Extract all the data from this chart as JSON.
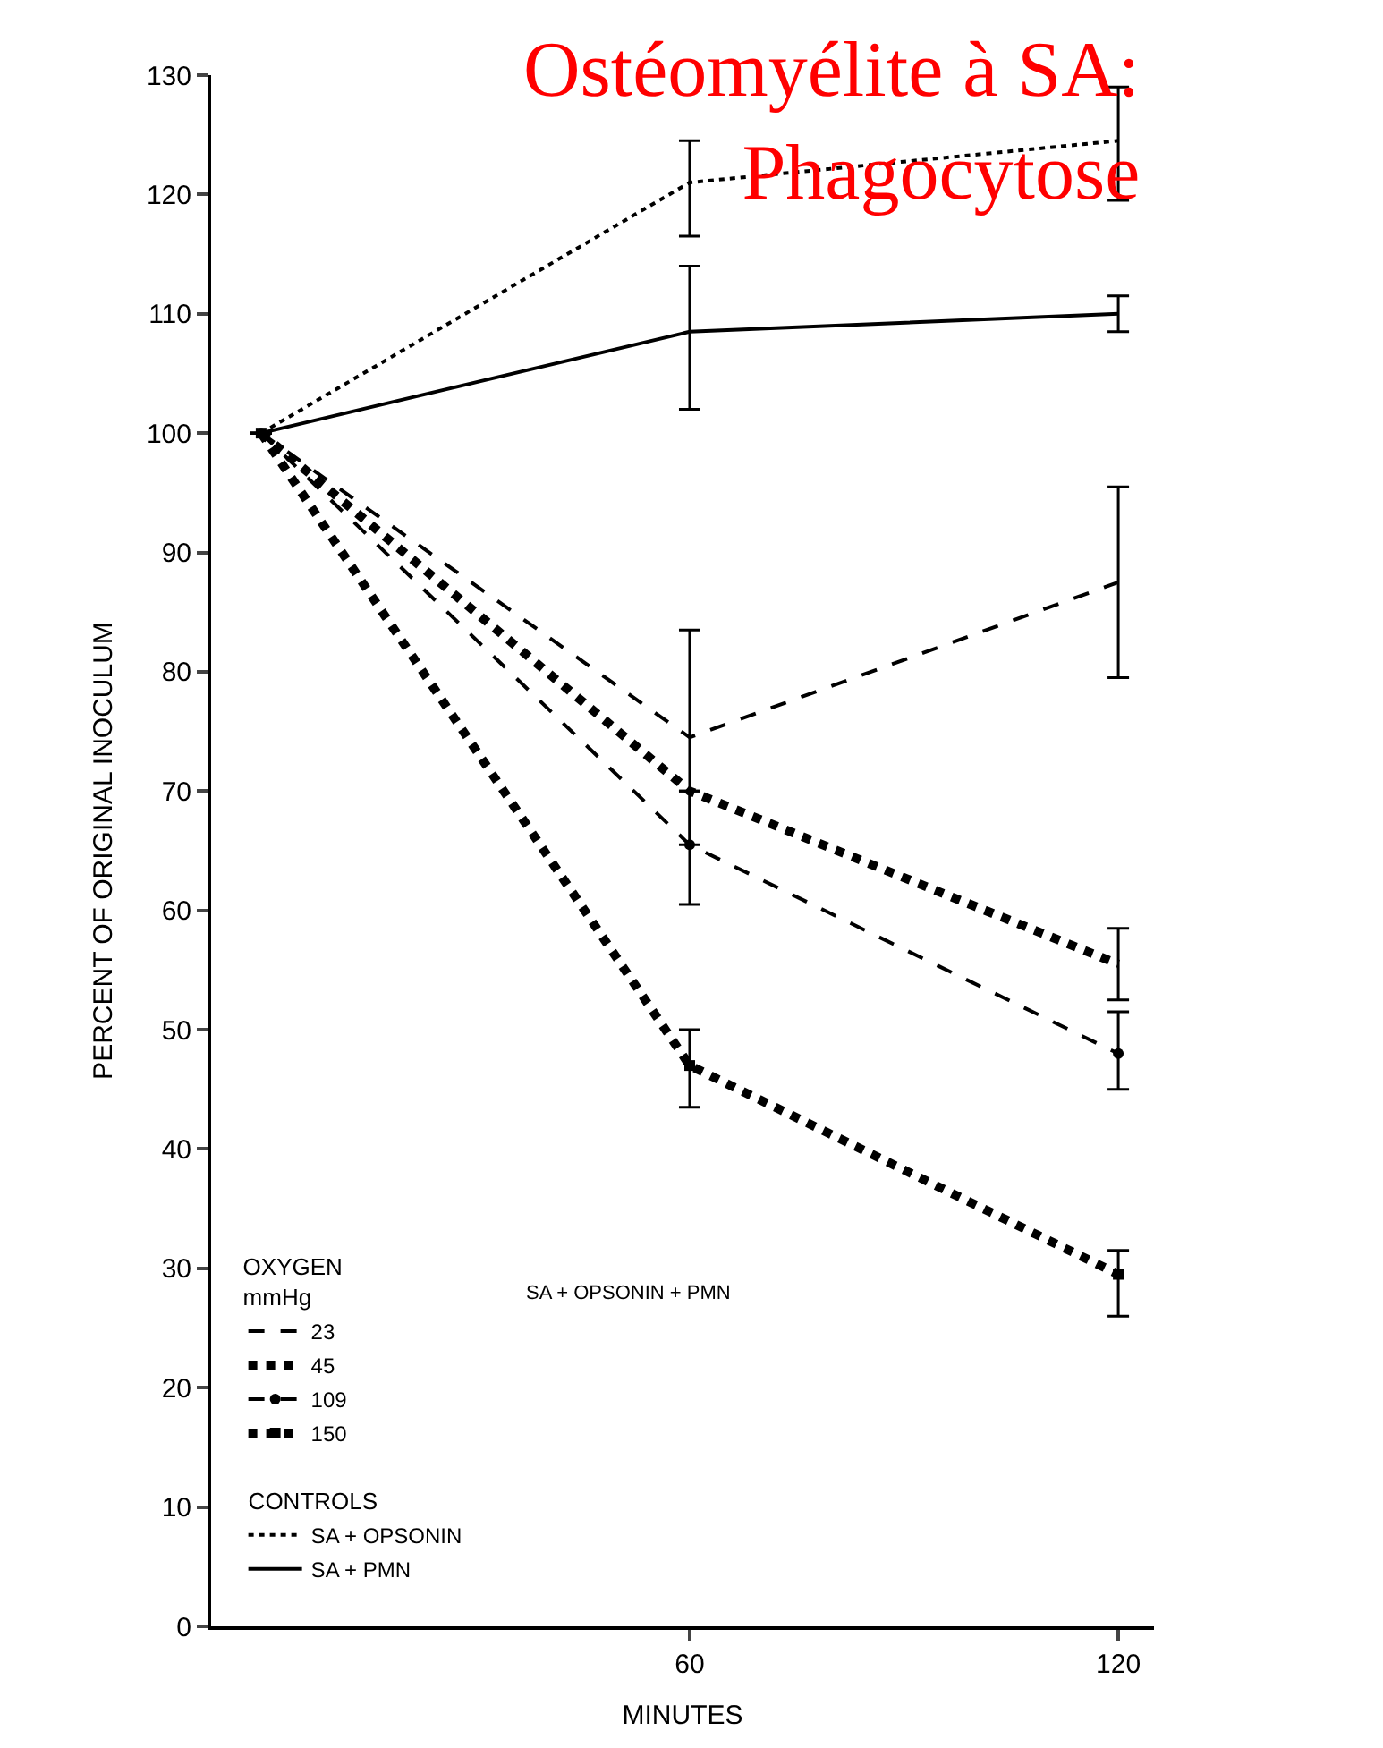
{
  "chart_data": {
    "type": "line",
    "title": "Ostéomyélite à SA:\nPhagocytose",
    "xlabel": "MINUTES",
    "ylabel": "PERCENT OF ORIGINAL INOCULUM",
    "legend_title": "OXYGEN\nmmHg",
    "x": [
      0,
      60,
      120
    ],
    "xlim": [
      -7,
      125
    ],
    "xticks": [
      60,
      120
    ],
    "ylim": [
      0,
      130
    ],
    "yticks": [
      0,
      10,
      20,
      30,
      40,
      50,
      60,
      70,
      80,
      90,
      100,
      110,
      120,
      130
    ],
    "legend": "bottom left",
    "annotations": [
      "SA + OPSONIN + PMN",
      "CONTROLS"
    ],
    "series": [
      {
        "name": "23",
        "color": "#000000",
        "line_style": "dashed",
        "values": [
          100,
          74.5,
          87.5
        ],
        "errors": [
          null,
          [
            65.5,
            83.5
          ],
          [
            79.5,
            95.5
          ]
        ]
      },
      {
        "name": "45",
        "color": "#000000",
        "line_style": "dotted",
        "values": [
          100,
          70,
          55.5
        ],
        "errors": [
          null,
          null,
          [
            52.5,
            58.5
          ]
        ]
      },
      {
        "name": "109",
        "color": "#000000",
        "line_style": "dashed",
        "marker": "circle",
        "values": [
          100,
          65.5,
          48
        ],
        "errors": [
          null,
          [
            60.5,
            70
          ],
          [
            45,
            51.5
          ]
        ]
      },
      {
        "name": "150",
        "color": "#000000",
        "line_style": "dotted",
        "marker": "square",
        "values": [
          100,
          47,
          29.5
        ],
        "errors": [
          null,
          [
            43.5,
            50
          ],
          [
            26,
            31.5
          ]
        ]
      },
      {
        "name": "SA + OPSONIN",
        "color": "#000000",
        "line_style": "dotted",
        "values": [
          100,
          121,
          124.5
        ],
        "errors": [
          null,
          [
            116.5,
            124.5
          ],
          [
            119.5,
            129
          ]
        ]
      },
      {
        "name": "SA + PMN",
        "color": "#000000",
        "line_style": "solid",
        "values": [
          100,
          108.5,
          110
        ],
        "errors": [
          null,
          [
            102,
            114
          ],
          [
            108.5,
            111.5
          ]
        ]
      }
    ]
  }
}
